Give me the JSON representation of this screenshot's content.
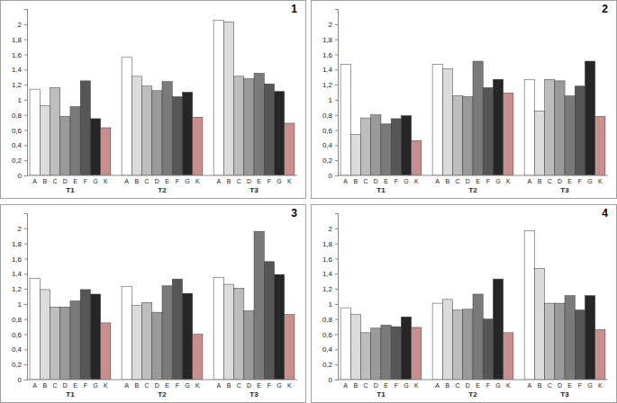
{
  "chart_data": [
    {
      "type": "bar",
      "title": "1",
      "categories": [
        "A",
        "B",
        "C",
        "D",
        "E",
        "F",
        "G",
        "K"
      ],
      "series": [
        {
          "name": "T1",
          "values": [
            1.14,
            0.92,
            1.16,
            0.78,
            0.91,
            1.25,
            0.75,
            0.63
          ]
        },
        {
          "name": "T2",
          "values": [
            1.56,
            1.31,
            1.18,
            1.12,
            1.24,
            1.04,
            1.1,
            0.77
          ]
        },
        {
          "name": "T3",
          "values": [
            2.05,
            2.03,
            1.31,
            1.28,
            1.35,
            1.21,
            1.11,
            0.69
          ]
        }
      ],
      "colors": [
        "#ffffff",
        "#dcdcdc",
        "#bdbdbd",
        "#9a9a9a",
        "#7a7a7a",
        "#565656",
        "#262626",
        "#c98f8f"
      ],
      "ylim": [
        0,
        2.2
      ],
      "yticks": [
        0,
        {
          "value": 0.2,
          "label": "0,2"
        },
        {
          "value": 0.4,
          "label": "0,4"
        },
        {
          "value": 0.6,
          "label": "0,6"
        },
        {
          "value": 0.8,
          "label": "0,8"
        },
        1,
        {
          "value": 1.2,
          "label": "1,2"
        },
        {
          "value": 1.4,
          "label": "1,4"
        },
        {
          "value": 1.6,
          "label": "1,6"
        },
        {
          "value": 1.8,
          "label": "1,8"
        },
        2
      ]
    },
    {
      "type": "bar",
      "title": "2",
      "categories": [
        "A",
        "B",
        "C",
        "D",
        "E",
        "F",
        "G",
        "K"
      ],
      "series": [
        {
          "name": "T1",
          "values": [
            1.47,
            0.54,
            0.76,
            0.8,
            0.68,
            0.75,
            0.79,
            0.46
          ]
        },
        {
          "name": "T2",
          "values": [
            1.47,
            1.41,
            1.05,
            1.04,
            1.51,
            1.16,
            1.27,
            1.09
          ]
        },
        {
          "name": "T3",
          "values": [
            1.27,
            0.85,
            1.27,
            1.25,
            1.05,
            1.18,
            1.51,
            0.78
          ]
        }
      ],
      "colors": [
        "#ffffff",
        "#dcdcdc",
        "#bdbdbd",
        "#9a9a9a",
        "#7a7a7a",
        "#565656",
        "#262626",
        "#c98f8f"
      ],
      "ylim": [
        0,
        2.2
      ],
      "yticks": [
        0,
        {
          "value": 0.2,
          "label": "0,2"
        },
        {
          "value": 0.4,
          "label": "0,4"
        },
        {
          "value": 0.6,
          "label": "0,6"
        },
        {
          "value": 0.8,
          "label": "0,8"
        },
        1,
        {
          "value": 1.2,
          "label": "1,2"
        },
        {
          "value": 1.4,
          "label": "1,4"
        },
        {
          "value": 1.6,
          "label": "1,6"
        },
        {
          "value": 1.8,
          "label": "1,8"
        },
        2
      ]
    },
    {
      "type": "bar",
      "title": "3",
      "categories": [
        "A",
        "B",
        "C",
        "D",
        "E",
        "F",
        "G",
        "K"
      ],
      "series": [
        {
          "name": "T1",
          "values": [
            1.34,
            1.19,
            0.96,
            0.96,
            1.04,
            1.19,
            1.13,
            0.75
          ]
        },
        {
          "name": "T2",
          "values": [
            1.23,
            0.98,
            1.02,
            0.89,
            1.24,
            1.33,
            1.14,
            0.6
          ]
        },
        {
          "name": "T3",
          "values": [
            1.35,
            1.26,
            1.21,
            0.91,
            1.96,
            1.56,
            1.39,
            0.86
          ]
        }
      ],
      "colors": [
        "#ffffff",
        "#dcdcdc",
        "#bdbdbd",
        "#9a9a9a",
        "#7a7a7a",
        "#565656",
        "#262626",
        "#c98f8f"
      ],
      "ylim": [
        0,
        2.2
      ],
      "yticks": [
        0,
        {
          "value": 0.2,
          "label": "0,2"
        },
        {
          "value": 0.4,
          "label": "0,4"
        },
        {
          "value": 0.6,
          "label": "0,6"
        },
        {
          "value": 0.8,
          "label": "0,8"
        },
        1,
        {
          "value": 1.2,
          "label": "1,2"
        },
        {
          "value": 1.4,
          "label": "1,4"
        },
        {
          "value": 1.6,
          "label": "1,6"
        },
        {
          "value": 1.8,
          "label": "1,8"
        },
        2
      ]
    },
    {
      "type": "bar",
      "title": "4",
      "categories": [
        "A",
        "B",
        "C",
        "D",
        "E",
        "F",
        "G",
        "K"
      ],
      "series": [
        {
          "name": "T1",
          "values": [
            0.95,
            0.86,
            0.62,
            0.68,
            0.72,
            0.7,
            0.83,
            0.69
          ]
        },
        {
          "name": "T2",
          "values": [
            1.01,
            1.06,
            0.92,
            0.93,
            1.13,
            0.8,
            1.33,
            0.62
          ]
        },
        {
          "name": "T3",
          "values": [
            1.97,
            1.47,
            1.01,
            1.01,
            1.11,
            0.92,
            1.11,
            0.66
          ]
        }
      ],
      "colors": [
        "#ffffff",
        "#dcdcdc",
        "#bdbdbd",
        "#9a9a9a",
        "#7a7a7a",
        "#565656",
        "#262626",
        "#c98f8f"
      ],
      "ylim": [
        0,
        2.2
      ],
      "yticks": [
        0,
        {
          "value": 0.2,
          "label": "0,2"
        },
        {
          "value": 0.4,
          "label": "0,4"
        },
        {
          "value": 0.6,
          "label": "0,6"
        },
        {
          "value": 0.8,
          "label": "0,8"
        },
        1,
        {
          "value": 1.2,
          "label": "1,2"
        },
        {
          "value": 1.4,
          "label": "1,4"
        },
        {
          "value": 1.6,
          "label": "1,6"
        },
        {
          "value": 1.8,
          "label": "1,8"
        },
        2
      ]
    }
  ]
}
